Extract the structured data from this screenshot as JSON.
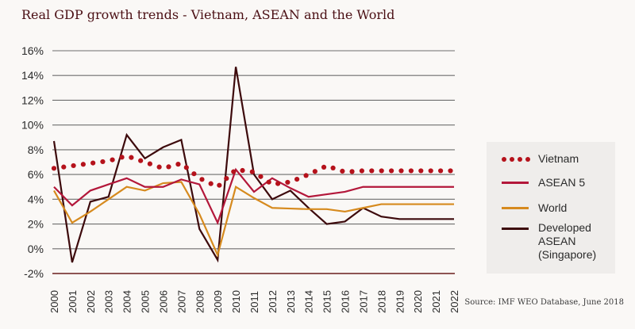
{
  "chart_data": {
    "type": "line",
    "title": "Real GDP growth trends - Vietnam, ASEAN and the World",
    "xlabel": "",
    "ylabel": "",
    "ylim": [
      -2,
      16
    ],
    "yticks": [
      "16%",
      "14%",
      "12%",
      "10%",
      "8%",
      "6%",
      "4%",
      "2%",
      "0%",
      "-2%"
    ],
    "ytick_values": [
      16,
      14,
      12,
      10,
      8,
      6,
      4,
      2,
      0,
      -2
    ],
    "grid": true,
    "legend_position": "right",
    "x": [
      "2000",
      "2001",
      "2002",
      "2003",
      "2004",
      "2005",
      "2006",
      "2007",
      "2008",
      "2009",
      "2010",
      "2011",
      "2012",
      "2013",
      "2014",
      "2015",
      "2016",
      "2017",
      "2018",
      "2019",
      "2020",
      "2021",
      "2022"
    ],
    "series": [
      {
        "name": "Vietnam",
        "style": "dotted",
        "color": "#b5121b",
        "values": [
          6.5,
          6.7,
          6.9,
          7.1,
          7.5,
          7.0,
          6.5,
          6.9,
          5.7,
          5.0,
          6.4,
          6.2,
          5.2,
          5.4,
          6.0,
          6.7,
          6.2,
          6.3,
          6.3,
          6.3,
          6.3,
          6.3,
          6.3
        ]
      },
      {
        "name": "ASEAN 5",
        "style": "solid",
        "color": "#b3173a",
        "values": [
          5.0,
          3.5,
          4.7,
          5.2,
          5.7,
          5.0,
          5.0,
          5.6,
          5.2,
          2.1,
          6.4,
          4.6,
          5.7,
          4.9,
          4.2,
          4.4,
          4.6,
          5.0,
          5.0,
          5.0,
          5.0,
          5.0,
          5.0
        ]
      },
      {
        "name": "World",
        "style": "solid",
        "color": "#d68a1e",
        "values": [
          4.7,
          2.1,
          3.0,
          4.0,
          5.0,
          4.7,
          5.3,
          5.4,
          2.8,
          -0.5,
          5.0,
          4.1,
          3.3,
          3.25,
          3.2,
          3.2,
          3.0,
          3.3,
          3.6,
          3.6,
          3.6,
          3.6,
          3.6
        ]
      },
      {
        "name": "Developed\nASEAN\n(Singapore)",
        "style": "solid",
        "color": "#3d0a0c",
        "values": [
          8.7,
          -1.1,
          3.8,
          4.2,
          9.2,
          7.3,
          8.2,
          8.8,
          1.6,
          -0.9,
          14.7,
          6.0,
          4.0,
          4.7,
          3.3,
          2.0,
          2.2,
          3.3,
          2.6,
          2.4,
          2.4,
          2.4,
          2.4
        ]
      }
    ],
    "annotations": [
      "Source: IMF WEO Database, June 2018"
    ]
  },
  "colors": {
    "background": "#faf8f6",
    "grid": "#6e6e6e",
    "baseline": "#6b1d1d",
    "title": "#4a0f14",
    "legend_bg": "#efedeb"
  }
}
